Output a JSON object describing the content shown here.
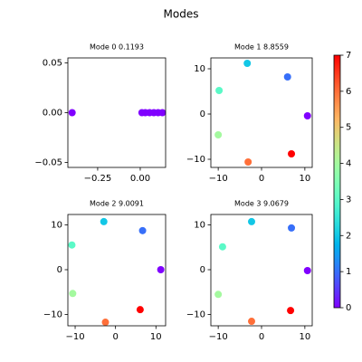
{
  "title": "Modes",
  "chart_data": [
    {
      "type": "scatter",
      "title": "Mode 0 0.1193",
      "x": [
        -0.4,
        0.01,
        0.03,
        0.055,
        0.08,
        0.105,
        0.13
      ],
      "y": [
        0,
        0,
        0,
        0,
        0,
        0,
        0
      ],
      "c": [
        0,
        0,
        0,
        0,
        0,
        0,
        0
      ],
      "xlim": [
        -0.425,
        0.149
      ],
      "ylim": [
        -0.055,
        0.055
      ],
      "xticks": [
        {
          "value": -0.25,
          "label": "−0.25"
        },
        {
          "value": 0,
          "label": "0.00"
        }
      ],
      "yticks": [
        {
          "value": -0.05,
          "label": "−0.05"
        },
        {
          "value": 0,
          "label": "0.00"
        },
        {
          "value": 0.05,
          "label": "0.05"
        }
      ]
    },
    {
      "type": "scatter",
      "title": "Mode 1 8.8559",
      "x": [
        10.6,
        6.0,
        -3.3,
        -9.8,
        -10.0,
        -3.1,
        6.9
      ],
      "y": [
        -0.4,
        8.2,
        11.2,
        5.2,
        -4.6,
        -10.6,
        -8.8
      ],
      "c": [
        0,
        1,
        2,
        3,
        4,
        6,
        7
      ],
      "xlim": [
        -11.7,
        11.7
      ],
      "ylim": [
        -11.8,
        12.4
      ],
      "xticks": [
        {
          "value": -10,
          "label": "−10"
        },
        0,
        10
      ],
      "yticks": [
        {
          "value": -10,
          "label": "−10"
        },
        0,
        10
      ]
    },
    {
      "type": "scatter",
      "title": "Mode 2 9.0091",
      "x": [
        11.2,
        6.7,
        -2.9,
        -10.8,
        -10.6,
        -2.5,
        6.1
      ],
      "y": [
        0.0,
        8.7,
        10.7,
        5.5,
        -5.3,
        -11.7,
        -8.9
      ],
      "c": [
        0,
        1,
        2,
        3,
        4,
        6,
        7
      ],
      "xlim": [
        -11.8,
        12.4
      ],
      "ylim": [
        -12.5,
        12.3
      ],
      "xticks": [
        {
          "value": -10,
          "label": "−10"
        },
        0,
        10
      ],
      "yticks": [
        {
          "value": -10,
          "label": "−10"
        },
        0,
        10
      ]
    },
    {
      "type": "scatter",
      "title": "Mode 3 9.0679",
      "x": [
        10.6,
        6.9,
        -2.3,
        -9.0,
        -10.0,
        -2.3,
        6.7
      ],
      "y": [
        -0.2,
        9.3,
        10.7,
        5.1,
        -5.5,
        -11.5,
        -9.1
      ],
      "c": [
        0,
        1,
        2,
        3,
        4,
        6,
        7
      ],
      "xlim": [
        -11.7,
        11.7
      ],
      "ylim": [
        -12.5,
        12.3
      ],
      "xticks": [
        {
          "value": -10,
          "label": "−10"
        },
        0,
        10
      ],
      "yticks": [
        {
          "value": -10,
          "label": "−10"
        },
        0,
        10
      ]
    }
  ],
  "colorbar": {
    "colormap": "rainbow",
    "lim": [
      0,
      7
    ],
    "ticks": [
      0,
      1,
      2,
      3,
      4,
      5,
      6,
      7
    ]
  }
}
